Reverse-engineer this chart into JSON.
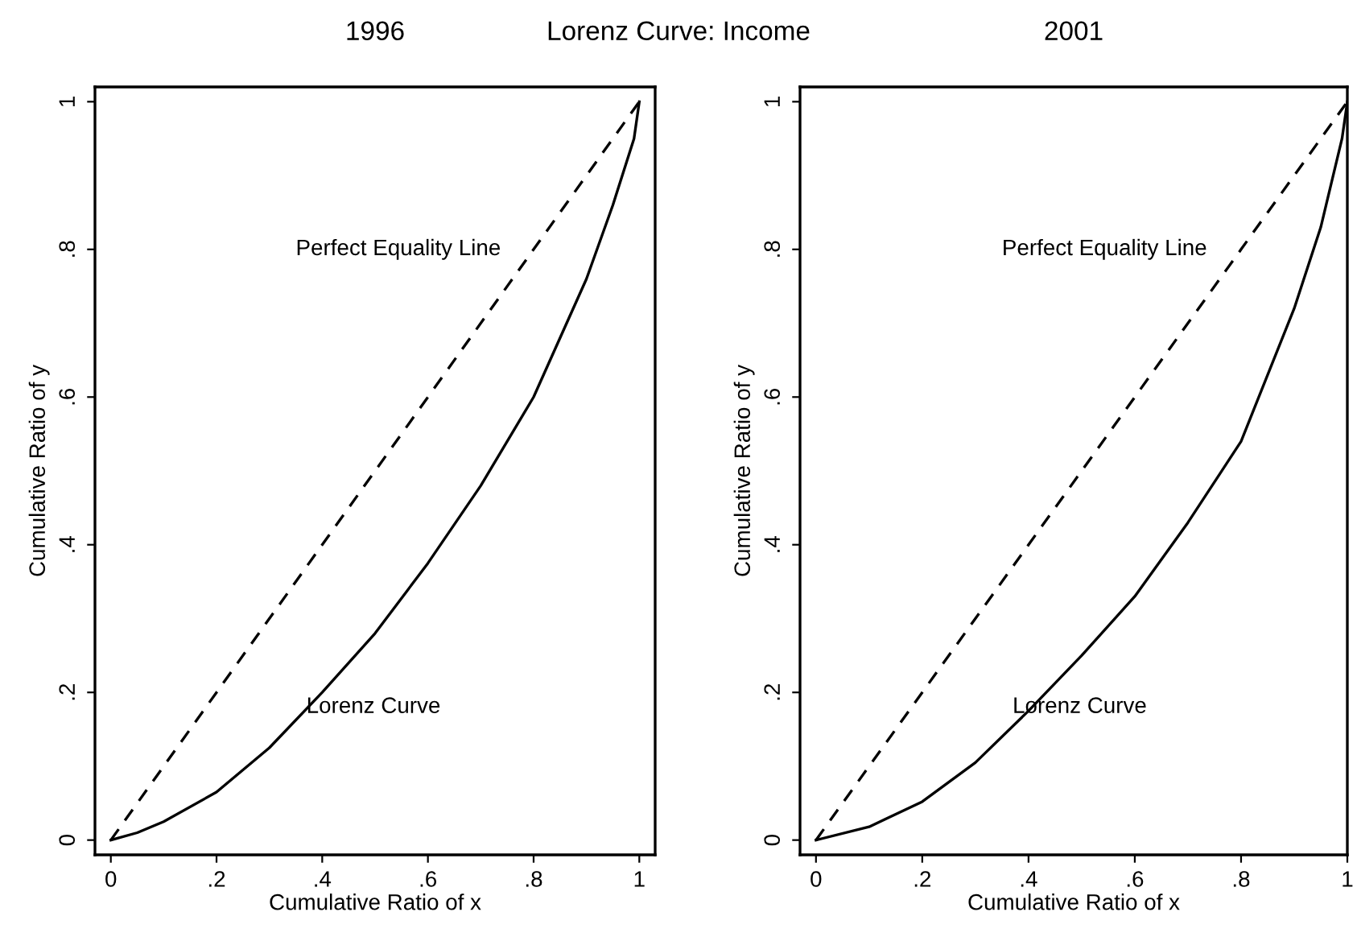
{
  "chart_data": [
    {
      "type": "line",
      "title": "1996",
      "xlabel": "Cumulative Ratio of x",
      "ylabel": "Cumulative Ratio of y",
      "annotations": [
        "Lorenz Curve: Income"
      ],
      "series": [
        {
          "name": "Perfect Equality Line",
          "color": "#000000",
          "line_style": "dashed",
          "x": [
            0,
            0.2,
            0.4,
            0.6,
            0.8,
            1
          ],
          "values": [
            0,
            0.2,
            0.4,
            0.6,
            0.8,
            1
          ]
        },
        {
          "name": "Lorenz Curve",
          "color": "#000000",
          "line_style": "solid",
          "x": [
            0,
            0.05,
            0.1,
            0.2,
            0.3,
            0.4,
            0.5,
            0.6,
            0.7,
            0.8,
            0.9,
            0.95,
            0.99,
            1
          ],
          "values": [
            0,
            0.01,
            0.025,
            0.065,
            0.125,
            0.2,
            0.28,
            0.375,
            0.48,
            0.6,
            0.76,
            0.86,
            0.95,
            1
          ]
        }
      ],
      "xlim": [
        -0.03,
        1.03
      ],
      "ylim": [
        -0.02,
        1.02
      ],
      "xticks": [
        0,
        {
          "value": 0.2,
          "label": ".2"
        },
        {
          "value": 0.4,
          "label": ".4"
        },
        {
          "value": 0.6,
          "label": ".6"
        },
        {
          "value": 0.8,
          "label": ".8"
        },
        1
      ],
      "yticks": [
        0,
        {
          "value": 0.2,
          "label": ".2"
        },
        {
          "value": 0.4,
          "label": ".4"
        },
        {
          "value": 0.6,
          "label": ".6"
        },
        {
          "value": 0.8,
          "label": ".8"
        },
        1
      ],
      "grid": false,
      "marker": "none"
    },
    {
      "type": "line",
      "title": "2001",
      "xlabel": "Cumulative Ratio of x",
      "ylabel": "Cumulative Ratio of y",
      "series": [
        {
          "name": "Perfect Equality Line",
          "color": "#000000",
          "line_style": "dashed",
          "x": [
            0,
            0.2,
            0.4,
            0.6,
            0.8,
            1
          ],
          "values": [
            0,
            0.2,
            0.4,
            0.6,
            0.8,
            1
          ]
        },
        {
          "name": "Lorenz Curve",
          "color": "#000000",
          "line_style": "solid",
          "x": [
            0,
            0.1,
            0.2,
            0.3,
            0.4,
            0.5,
            0.6,
            0.7,
            0.8,
            0.9,
            0.95,
            0.99,
            1
          ],
          "values": [
            0,
            0.018,
            0.052,
            0.105,
            0.175,
            0.25,
            0.33,
            0.43,
            0.54,
            0.72,
            0.83,
            0.95,
            1
          ]
        }
      ],
      "xlim": [
        -0.03,
        1.0
      ],
      "ylim": [
        -0.02,
        1.02
      ],
      "xticks": [
        0,
        {
          "value": 0.2,
          "label": ".2"
        },
        {
          "value": 0.4,
          "label": ".4"
        },
        {
          "value": 0.6,
          "label": ".6"
        },
        {
          "value": 0.8,
          "label": ".8"
        },
        1
      ],
      "yticks": [
        0,
        {
          "value": 0.2,
          "label": ".2"
        },
        {
          "value": 0.4,
          "label": ".4"
        },
        {
          "value": 0.6,
          "label": ".6"
        },
        {
          "value": 0.8,
          "label": ".8"
        },
        1
      ],
      "grid": false,
      "marker": "none"
    }
  ]
}
